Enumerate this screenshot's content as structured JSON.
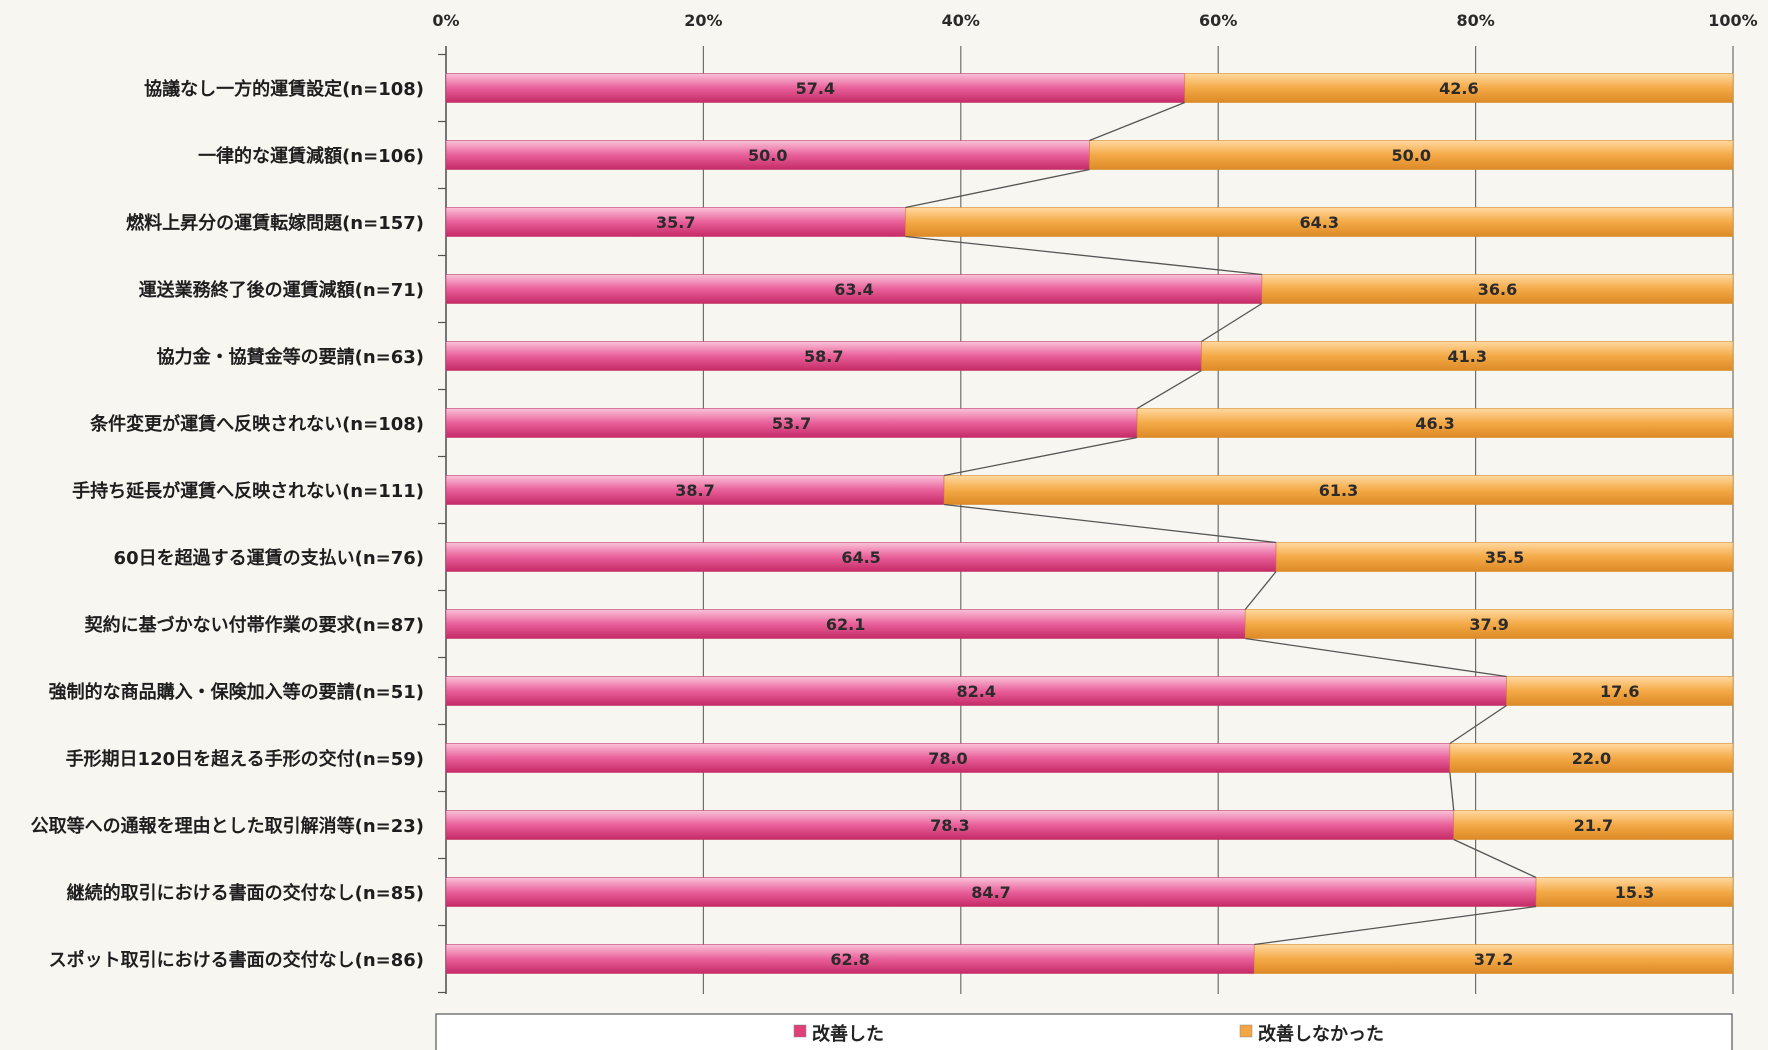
{
  "chart_data": {
    "type": "bar",
    "orientation": "horizontal",
    "stacked": true,
    "categories": [
      "協議なし一方的運賃設定(n=108)",
      "一律的な運賃減額(n=106)",
      "燃料上昇分の運賃転嫁問題(n=157)",
      "運送業務終了後の運賃減額(n=71)",
      "協力金・協賛金等の要請(n=63)",
      "条件変更が運賃へ反映されない(n=108)",
      "手持ち延長が運賃へ反映されない(n=111)",
      "60日を超過する運賃の支払い(n=76)",
      "契約に基づかない付帯作業の要求(n=87)",
      "強制的な商品購入・保険加入等の要請(n=51)",
      "手形期日120日を超える手形の交付(n=59)",
      "公取等への通報を理由とした取引解消等(n=23)",
      "継続的取引における書面の交付なし(n=85)",
      "スポット取引における書面の交付なし(n=86)"
    ],
    "series": [
      {
        "name": "改善した",
        "color": "#e0407a",
        "values": [
          57.4,
          50.0,
          35.7,
          63.4,
          58.7,
          53.7,
          38.7,
          64.5,
          62.1,
          82.4,
          78.0,
          78.3,
          84.7,
          62.8
        ]
      },
      {
        "name": "改善しなかった",
        "color": "#f3a542",
        "values": [
          42.6,
          50.0,
          64.3,
          36.6,
          41.3,
          46.3,
          61.3,
          35.5,
          37.9,
          17.6,
          22.0,
          21.7,
          15.3,
          37.2
        ]
      }
    ],
    "value_labels": [
      [
        "57.4",
        "42.6"
      ],
      [
        "50.0",
        "50.0"
      ],
      [
        "35.7",
        "64.3"
      ],
      [
        "63.4",
        "36.6"
      ],
      [
        "58.7",
        "41.3"
      ],
      [
        "53.7",
        "46.3"
      ],
      [
        "38.7",
        "61.3"
      ],
      [
        "64.5",
        "35.5"
      ],
      [
        "62.1",
        "37.9"
      ],
      [
        "82.4",
        "17.6"
      ],
      [
        "78.0",
        "22.0"
      ],
      [
        "78.3",
        "21.7"
      ],
      [
        "84.7",
        "15.3"
      ],
      [
        "62.8",
        "37.2"
      ]
    ],
    "x_ticks": [
      "0%",
      "20%",
      "40%",
      "60%",
      "80%",
      "100%"
    ],
    "xlim": [
      0,
      100
    ],
    "x_axis_position": "top",
    "grid": true,
    "series_lines": true,
    "legend_position": "bottom"
  }
}
